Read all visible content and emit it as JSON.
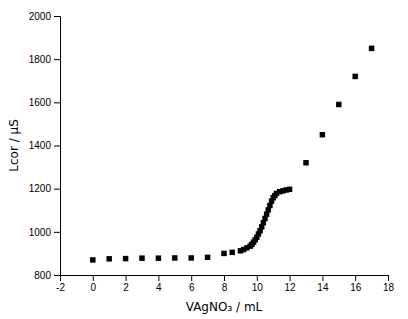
{
  "chart_data": {
    "type": "scatter",
    "x": [
      0,
      1,
      2,
      3,
      4,
      5,
      6,
      7,
      8,
      8.5,
      9.0,
      9.2,
      9.4,
      9.6,
      9.7,
      9.8,
      9.9,
      10.0,
      10.1,
      10.2,
      10.3,
      10.4,
      10.5,
      10.6,
      10.7,
      10.8,
      10.9,
      11.0,
      11.1,
      11.2,
      11.4,
      11.6,
      11.8,
      12.0,
      13.0,
      14.0,
      15.0,
      16.0,
      17.0
    ],
    "y": [
      870,
      875,
      876,
      878,
      878,
      879,
      879,
      882,
      900,
      905,
      912,
      918,
      926,
      934,
      942,
      952,
      963,
      975,
      990,
      1005,
      1023,
      1042,
      1062,
      1082,
      1102,
      1122,
      1142,
      1158,
      1168,
      1178,
      1186,
      1190,
      1194,
      1197,
      1320,
      1450,
      1590,
      1720,
      1850
    ],
    "xlim": [
      -2,
      18
    ],
    "ylim": [
      800,
      2000
    ],
    "xticks": [
      -2,
      0,
      2,
      4,
      6,
      8,
      10,
      12,
      14,
      16,
      18
    ],
    "yticks": [
      800,
      1000,
      1200,
      1400,
      1600,
      1800,
      2000
    ],
    "xlabel": "VAgNO₃ / mL",
    "ylabel": "Lcor / μS",
    "marker": "square",
    "color": "black",
    "grid": false
  }
}
